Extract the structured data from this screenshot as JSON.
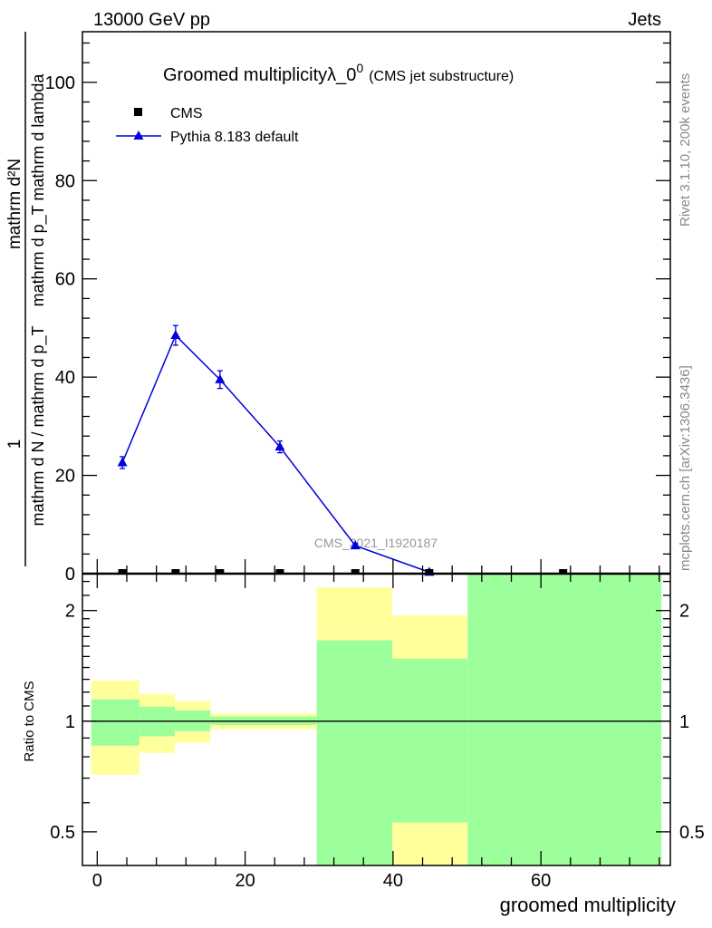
{
  "header": {
    "energy_label": "13000 GeV pp",
    "category_label": "Jets"
  },
  "side_texts": {
    "rivet": "Rivet 3.1.10,  200k events",
    "mcplots": "mcplots.cern.ch [arXiv:1306.3436]"
  },
  "colors": {
    "pythia": "#0000dd",
    "cms": "#000000",
    "band_green": "#9cff9c",
    "band_yellow": "#ffff9c",
    "watermark": "#999999"
  },
  "chart_data": [
    {
      "type": "scatter",
      "title": "Groomed multiplicityλ_0",
      "title_sup": "0",
      "subtitle": "(CMS jet substructure)",
      "analysis_label": "CMS_2021_I1920187",
      "ylabel_parts": {
        "num_top": "mathrm d²N",
        "den_top": "mathrm d p_T mathrm d lambda",
        "num_bottom": "1",
        "den_bottom": "mathrm d N / mathrm d p_T"
      },
      "xlim": [
        -2,
        77.5
      ],
      "ylim": [
        0,
        110.3
      ],
      "yticks": [
        0,
        20,
        40,
        60,
        80,
        100
      ],
      "legend_position": "top-left",
      "series": [
        {
          "name": "CMS",
          "marker": "square",
          "x": [
            3.4,
            10.6,
            16.6,
            24.7,
            34.9,
            44.9,
            63
          ],
          "y": [
            0,
            0,
            0,
            0,
            0,
            0,
            0
          ]
        },
        {
          "name": "Pythia 8.183 default",
          "marker": "triangle",
          "x": [
            3.4,
            10.6,
            16.6,
            24.7,
            34.9,
            44.9
          ],
          "y": [
            22.6,
            48.5,
            39.5,
            25.8,
            5.7,
            0.3
          ],
          "yerr": [
            1.2,
            2.0,
            1.8,
            1.2,
            0.4,
            0.2
          ]
        }
      ]
    },
    {
      "type": "area",
      "ylabel": "Ratio to CMS",
      "xlabel": "groomed multiplicity",
      "yscale": "log",
      "ylim": [
        0.405,
        2.52
      ],
      "yticks": [
        0.5,
        1,
        2
      ],
      "ytick_labels": [
        "0.5",
        "1",
        "2"
      ],
      "xticks": [
        0,
        20,
        40,
        60
      ],
      "xtick_labels": [
        "0",
        "20",
        "40",
        "60"
      ],
      "reference_line": 1,
      "bins": [
        {
          "lo": -0.8,
          "hi": 5.7,
          "green": [
            0.858,
            1.146
          ],
          "yellow": [
            0.715,
            1.29
          ]
        },
        {
          "lo": 5.7,
          "hi": 10.5,
          "green": [
            0.91,
            1.095
          ],
          "yellow": [
            0.82,
            1.186
          ]
        },
        {
          "lo": 10.5,
          "hi": 15.3,
          "green": [
            0.94,
            1.07
          ],
          "yellow": [
            0.874,
            1.133
          ]
        },
        {
          "lo": 15.3,
          "hi": 29.7,
          "green": [
            0.977,
            1.03
          ],
          "yellow": [
            0.952,
            1.05
          ]
        },
        {
          "lo": 29.7,
          "hi": 39.9,
          "green": [
            0.3,
            1.66
          ],
          "yellow": [
            0.3,
            2.31
          ]
        },
        {
          "lo": 39.9,
          "hi": 50.1,
          "green": [
            0.53,
            1.48
          ],
          "yellow": [
            0.3,
            1.94
          ]
        },
        {
          "lo": 50.1,
          "hi": 76.3,
          "green": [
            0.3,
            3.0
          ],
          "yellow": [
            0.3,
            3.0
          ]
        }
      ]
    }
  ]
}
